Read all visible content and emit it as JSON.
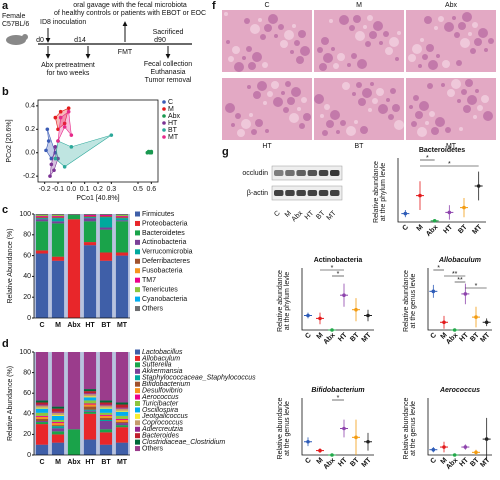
{
  "panel_labels": [
    "a",
    "b",
    "c",
    "d",
    "e",
    "f",
    "g"
  ],
  "timeline": {
    "subject": [
      "Female",
      "C57BL/6"
    ],
    "inoculation": "ID8 inoculation",
    "gavage": [
      "oral gavage with the fecal microbiota",
      "of healthy controls or patients with EBOT or EOC"
    ],
    "days": [
      "d0",
      "d14",
      "d90"
    ],
    "fmt": "FMT",
    "sacrificed": "Sacrificed",
    "abx": [
      "Abx pretreatment",
      "for two weeks"
    ],
    "end": [
      "Fecal collection",
      "Euthanasia",
      "Tumor removal"
    ]
  },
  "histology": {
    "labels": [
      "C",
      "M",
      "Abx",
      "HT",
      "BT",
      "MT"
    ]
  },
  "blot": {
    "proteins": [
      "occludin",
      "β-actin"
    ],
    "lanes": [
      "C",
      "M",
      "Abx",
      "HT",
      "BT",
      "MT"
    ]
  },
  "chart_data": [
    {
      "type": "scatter",
      "xlabel": "PCo1 [40.8%]",
      "ylabel": "PCo2 [20.6%]",
      "xlim": [
        -0.25,
        0.65
      ],
      "ylim": [
        -0.25,
        0.45
      ],
      "xticks": [
        -0.2,
        -0.1,
        {
          "value": 0,
          "label": "0.0"
        },
        0.1,
        0.2,
        0.3,
        0.5,
        0.6
      ],
      "yticks": [
        -0.2,
        {
          "value": 0,
          "label": "0.0"
        },
        0.2,
        0.4
      ],
      "series": [
        {
          "name": "C",
          "color": "#3b5bb5",
          "x": [
            -0.19,
            -0.17,
            -0.15,
            -0.12,
            -0.18
          ],
          "y": [
            0.02,
            0.1,
            -0.05,
            0.0,
            0.2
          ]
        },
        {
          "name": "M",
          "color": "#e41a1c",
          "x": [
            -0.12,
            -0.08,
            -0.05,
            -0.02,
            -0.1
          ],
          "y": [
            0.3,
            0.35,
            0.25,
            0.38,
            0.2
          ]
        },
        {
          "name": "Abx",
          "color": "#1a9850",
          "x": [
            0.57,
            0.58,
            0.59,
            0.6,
            0.6
          ],
          "y": [
            0.0,
            0.01,
            0.0,
            0.01,
            0.0
          ]
        },
        {
          "name": "HT",
          "color": "#7b3294",
          "x": [
            -0.15,
            -0.13,
            -0.1,
            -0.16,
            -0.12
          ],
          "y": [
            -0.1,
            -0.15,
            -0.05,
            -0.2,
            0.05
          ]
        },
        {
          "name": "BT",
          "color": "#2ca89a",
          "x": [
            -0.1,
            0.0,
            0.3,
            -0.05,
            -0.12
          ],
          "y": [
            0.1,
            0.05,
            0.15,
            -0.12,
            -0.05
          ]
        },
        {
          "name": "MT",
          "color": "#e7298a",
          "x": [
            -0.08,
            -0.05,
            0.0,
            -0.02,
            -0.1
          ],
          "y": [
            0.3,
            0.22,
            0.15,
            0.35,
            0.1
          ]
        }
      ]
    },
    {
      "type": "stacked_bar",
      "ylabel": "Relative Abundance (%)",
      "categories": [
        "C",
        "M",
        "Abx",
        "HT",
        "BT",
        "MT"
      ],
      "ylim": [
        0,
        100
      ],
      "yticks": [
        0,
        20,
        40,
        60,
        80,
        100
      ],
      "legend_italic": false,
      "series": [
        {
          "name": "Firmicutes",
          "color": "#3f5fa8",
          "values": [
            62,
            55,
            0,
            70,
            55,
            60
          ]
        },
        {
          "name": "Proteobacteria",
          "color": "#e8262a",
          "values": [
            3,
            4,
            95,
            3,
            8,
            3
          ]
        },
        {
          "name": "Bacteroidetes",
          "color": "#1aa34a",
          "values": [
            28,
            32,
            4,
            20,
            22,
            30
          ]
        },
        {
          "name": "Actinobacteria",
          "color": "#7b3f98",
          "values": [
            2,
            2,
            0,
            3,
            2,
            1
          ]
        },
        {
          "name": "Verrucomicrobia",
          "color": "#00a99d",
          "values": [
            1,
            3,
            0,
            1,
            10,
            2
          ]
        },
        {
          "name": "Deferribacteres",
          "color": "#a0522d",
          "values": [
            1,
            1,
            0,
            1,
            1,
            1
          ]
        },
        {
          "name": "Fusobacteria",
          "color": "#f7941d",
          "values": [
            0,
            0,
            0,
            0,
            0,
            0
          ]
        },
        {
          "name": "TM7",
          "color": "#ec008c",
          "values": [
            1,
            1,
            0,
            1,
            1,
            1
          ]
        },
        {
          "name": "Tenericutes",
          "color": "#8dc63f",
          "values": [
            1,
            1,
            0,
            0,
            0,
            1
          ]
        },
        {
          "name": "Cyanobacteria",
          "color": "#00aeef",
          "values": [
            0,
            0,
            0,
            0,
            0,
            0
          ]
        },
        {
          "name": "Others",
          "color": "#6d6e71",
          "values": [
            1,
            1,
            1,
            1,
            1,
            1
          ]
        }
      ]
    },
    {
      "type": "stacked_bar",
      "ylabel": "Relative Abundance (%)",
      "categories": [
        "C",
        "M",
        "Abx",
        "HT",
        "BT",
        "MT"
      ],
      "ylim": [
        0,
        100
      ],
      "yticks": [
        0,
        20,
        40,
        60,
        80,
        100
      ],
      "legend_italic": true,
      "series": [
        {
          "name": "Lactobacillus",
          "color": "#3f5fa8",
          "values": [
            10,
            12,
            0,
            15,
            10,
            12
          ]
        },
        {
          "name": "Allobaculum",
          "color": "#e8262a",
          "values": [
            20,
            8,
            0,
            25,
            12,
            15
          ]
        },
        {
          "name": "Sutterella",
          "color": "#1aa34a",
          "values": [
            2,
            3,
            25,
            2,
            3,
            2
          ]
        },
        {
          "name": "Akkermansia",
          "color": "#7b3f98",
          "values": [
            1,
            3,
            0,
            1,
            8,
            2
          ]
        },
        {
          "name": "Staphylococcaceae_Staphylococcus",
          "color": "#00a99d",
          "values": [
            0,
            2,
            0,
            1,
            1,
            0
          ]
        },
        {
          "name": "Bifidobacterium",
          "color": "#a0522d",
          "values": [
            2,
            1,
            0,
            3,
            2,
            1
          ]
        },
        {
          "name": "Desulfovibrio",
          "color": "#f7941d",
          "values": [
            2,
            2,
            0,
            2,
            2,
            2
          ]
        },
        {
          "name": "Aerococcus",
          "color": "#ec008c",
          "values": [
            1,
            1,
            0,
            1,
            1,
            1
          ]
        },
        {
          "name": "Turicibacter",
          "color": "#8dc63f",
          "values": [
            3,
            2,
            0,
            3,
            2,
            3
          ]
        },
        {
          "name": "Oscillospira",
          "color": "#00aeef",
          "values": [
            4,
            4,
            0,
            3,
            4,
            4
          ]
        },
        {
          "name": "Jeotgalicoccus",
          "color": "#f9ed32",
          "values": [
            1,
            1,
            0,
            1,
            1,
            1
          ]
        },
        {
          "name": "Coprococcus",
          "color": "#c49a6c",
          "values": [
            2,
            2,
            0,
            2,
            2,
            2
          ]
        },
        {
          "name": "Adlercreutzia",
          "color": "#92278f",
          "values": [
            1,
            1,
            0,
            1,
            1,
            1
          ]
        },
        {
          "name": "Bacteroides",
          "color": "#be1e2d",
          "values": [
            2,
            3,
            0,
            2,
            2,
            3
          ]
        },
        {
          "name": "Clostridiaceae_Clostridium",
          "color": "#006838",
          "values": [
            2,
            2,
            0,
            2,
            2,
            2
          ]
        },
        {
          "name": "Others",
          "color": "#9b3c8c",
          "values": [
            47,
            53,
            75,
            36,
            47,
            49
          ]
        }
      ]
    },
    {
      "type": "dot",
      "title": "Bacteroidetes",
      "italic": false,
      "ylabel": [
        "Relative abundance",
        "at the phylum levle"
      ],
      "categories": [
        "C",
        "M",
        "Abx",
        "HT",
        "BT",
        "MT"
      ],
      "colors": [
        "#2e5cb8",
        "#e31a1c",
        "#22a84a",
        "#8e44ad",
        "#f39c12",
        "#222222"
      ],
      "ylim": [
        0,
        0.5
      ],
      "values": [
        0.07,
        0.22,
        0.01,
        0.08,
        0.12,
        0.3
      ],
      "errors": [
        0.03,
        0.12,
        0.01,
        0.06,
        0.08,
        0.12
      ],
      "annotations": [
        {
          "label": "*",
          "between": [
            "M",
            "Abx"
          ]
        },
        {
          "label": "*",
          "between": [
            "M",
            "MT"
          ]
        }
      ]
    },
    {
      "type": "dot",
      "title": "Actinobacteria",
      "italic": false,
      "ylabel": [
        "Relative abundance",
        "at the phylum levle"
      ],
      "categories": [
        "C",
        "M",
        "Abx",
        "HT",
        "BT",
        "MT"
      ],
      "colors": [
        "#2e5cb8",
        "#e31a1c",
        "#22a84a",
        "#8e44ad",
        "#f39c12",
        "#222222"
      ],
      "ylim": [
        0,
        0.2
      ],
      "values": [
        0.05,
        0.04,
        0.0,
        0.12,
        0.07,
        0.05
      ],
      "errors": [
        0.01,
        0.02,
        0.0,
        0.04,
        0.04,
        0.02
      ],
      "annotations": [
        {
          "label": "*",
          "between": [
            "M",
            "HT"
          ]
        },
        {
          "label": "*",
          "between": [
            "Abx",
            "HT"
          ]
        }
      ]
    },
    {
      "type": "dot",
      "title": "Allobaculum",
      "italic": true,
      "ylabel": [
        "Relative abundance",
        "at the genus levle"
      ],
      "categories": [
        "C",
        "M",
        "Abx",
        "HT",
        "BT",
        "MT"
      ],
      "colors": [
        "#2e5cb8",
        "#e31a1c",
        "#22a84a",
        "#8e44ad",
        "#f39c12",
        "#222222"
      ],
      "ylim": [
        0,
        0.45
      ],
      "values": [
        0.3,
        0.06,
        0.0,
        0.28,
        0.1,
        0.06
      ],
      "errors": [
        0.05,
        0.05,
        0.0,
        0.08,
        0.08,
        0.03
      ],
      "annotations": [
        {
          "label": "*",
          "between": [
            "C",
            "M"
          ]
        },
        {
          "label": "**",
          "between": [
            "M",
            "HT"
          ]
        },
        {
          "label": "**",
          "between": [
            "Abx",
            "HT"
          ]
        },
        {
          "label": "*",
          "between": [
            "HT",
            "MT"
          ]
        }
      ]
    },
    {
      "type": "dot",
      "title": "Bifidobacterium",
      "italic": true,
      "ylabel": [
        "Relative abundance",
        "at the genus levle"
      ],
      "categories": [
        "C",
        "M",
        "Abx",
        "HT",
        "BT",
        "MT"
      ],
      "colors": [
        "#2e5cb8",
        "#e31a1c",
        "#22a84a",
        "#8e44ad",
        "#f39c12",
        "#222222"
      ],
      "ylim": [
        0,
        0.12
      ],
      "values": [
        0.03,
        0.01,
        0.0,
        0.06,
        0.04,
        0.03
      ],
      "errors": [
        0.01,
        0.005,
        0.0,
        0.02,
        0.04,
        0.02
      ],
      "annotations": [
        {
          "label": "*",
          "between": [
            "Abx",
            "HT"
          ]
        }
      ]
    },
    {
      "type": "dot",
      "title": "Aerococcus",
      "italic": true,
      "ylabel": [
        "Relative abundance",
        "at the genus levle"
      ],
      "categories": [
        "C",
        "M",
        "Abx",
        "HT",
        "BT",
        "MT"
      ],
      "colors": [
        "#2e5cb8",
        "#e31a1c",
        "#22a84a",
        "#8e44ad",
        "#f39c12",
        "#222222"
      ],
      "ylim": [
        0,
        0.02
      ],
      "values": [
        0.002,
        0.003,
        0.0,
        0.003,
        0.001,
        0.006
      ],
      "errors": [
        0.001,
        0.002,
        0.0,
        0.001,
        0.001,
        0.008
      ],
      "annotations": []
    }
  ]
}
